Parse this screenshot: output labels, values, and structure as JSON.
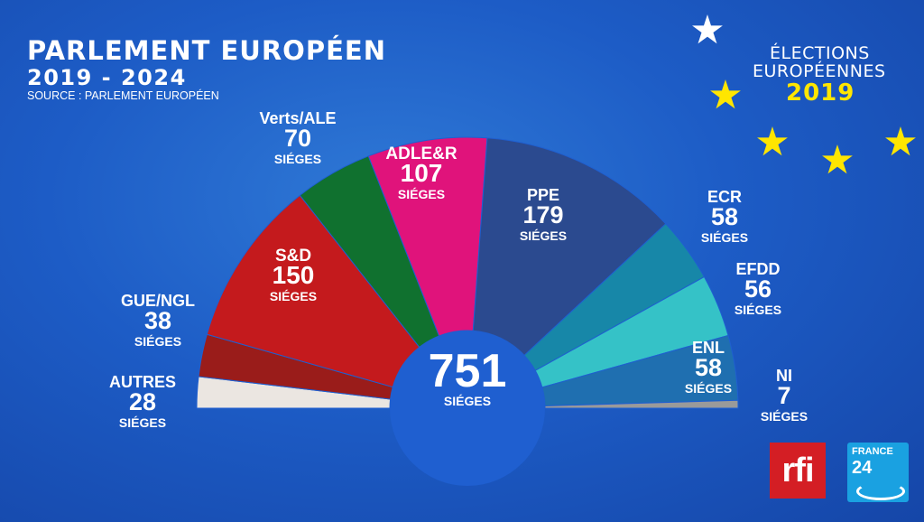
{
  "header": {
    "title": "PARLEMENT EUROPÉEN",
    "years": "2019 - 2024",
    "source": "SOURCE : PARLEMENT EUROPÉEN"
  },
  "badge": {
    "line1": "ÉLECTIONS",
    "line2": "EUROPÉENNES",
    "year": "2019",
    "star_color": "#ffe600",
    "white_star_color": "#ffffff",
    "star_icon": "star-icon"
  },
  "logos": {
    "rfi": "rfi",
    "france24_top": "FRANCE",
    "france24_num": "24"
  },
  "chart_data": {
    "type": "pie",
    "subtype": "hemicycle",
    "total": {
      "value": 751,
      "label": "751",
      "unit": "SIÉGES"
    },
    "series": [
      {
        "name": "AUTRES",
        "value": 28,
        "value_label": "28",
        "unit": "SIÉGES",
        "color": "#ebe6e1"
      },
      {
        "name": "GUE/NGL",
        "value": 38,
        "value_label": "38",
        "unit": "SIÉGES",
        "color": "#9a1c1a"
      },
      {
        "name": "S&D",
        "value": 150,
        "value_label": "150",
        "unit": "SIÉGES",
        "color": "#c41a1d"
      },
      {
        "name": "Verts/ALE",
        "value": 70,
        "value_label": "70",
        "unit": "SIÉGES",
        "color": "#10712f"
      },
      {
        "name": "ADLE&R",
        "value": 107,
        "value_label": "107",
        "unit": "SIÉGES",
        "color": "#e0137b"
      },
      {
        "name": "PPE",
        "value": 179,
        "value_label": "179",
        "unit": "SIÉGES",
        "color": "#2b4a8f"
      },
      {
        "name": "ECR",
        "value": 58,
        "value_label": "58",
        "unit": "SIÉGES",
        "color": "#1787a8"
      },
      {
        "name": "EFDD",
        "value": 56,
        "value_label": "56",
        "unit": "SIÉGES",
        "color": "#35c2c7"
      },
      {
        "name": "ENL",
        "value": 58,
        "value_label": "58",
        "unit": "SIÉGES",
        "color": "#1f6fb0"
      },
      {
        "name": "NI",
        "value": 7,
        "value_label": "7",
        "unit": "SIÉGES",
        "color": "#9a9a9a"
      }
    ]
  }
}
